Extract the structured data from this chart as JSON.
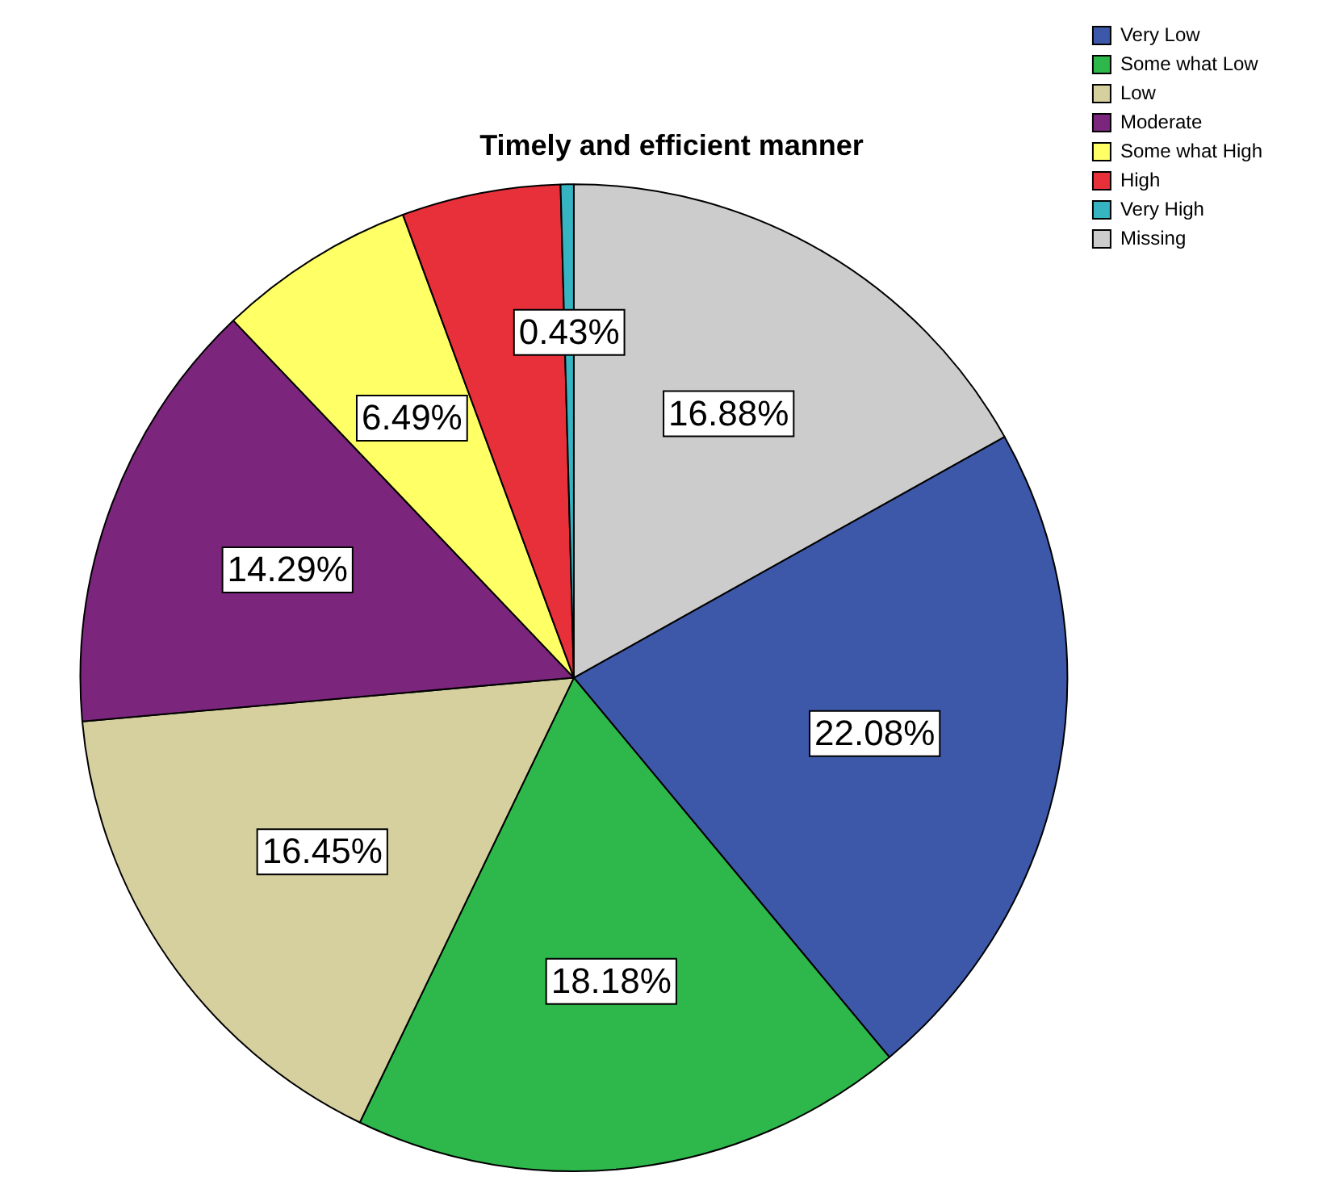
{
  "chart_data": {
    "type": "pie",
    "title": "Timely and efficient manner",
    "categories": [
      "Very Low",
      "Some what Low",
      "Low",
      "Moderate",
      "Some what High",
      "High",
      "Very High",
      "Missing"
    ],
    "values": [
      22.08,
      18.18,
      16.45,
      14.29,
      6.49,
      5.2,
      0.43,
      16.88
    ],
    "colors": [
      "#3d58a8",
      "#2eb84c",
      "#d5d09e",
      "#7b267c",
      "#ffff66",
      "#e8303a",
      "#36b4c2",
      "#cccccc"
    ],
    "value_labels": [
      "22.08%",
      "18.18%",
      "16.45%",
      "14.29%",
      "6.49%",
      null,
      "0.43%",
      "16.88%"
    ],
    "legend": "top right"
  }
}
